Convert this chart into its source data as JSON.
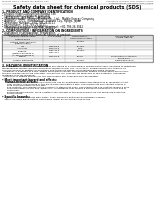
{
  "bg_color": "#ffffff",
  "header_top_left": "Product Name: Lithium Ion Battery Cell",
  "header_top_right": "Substance Number: M37702M2A-278FP\nEstablishment / Revision: Dec.7.2010",
  "title": "Safety data sheet for chemical products (SDS)",
  "section1_title": "1. PRODUCT AND COMPANY IDENTIFICATION",
  "section1_lines": [
    "• Product name: Lithium Ion Battery Cell",
    "• Product code: Cylindrical type cell",
    "   (AF18650U, (AF18650L, (AF18650A",
    "• Company name:   Banyu Electric Co., Ltd.,  Middle Energy Company",
    "• Address:   2201,  Kamimatsuri, Sumoto City, Hyogo, Japan",
    "• Telephone number:  +81-799-26-4111",
    "• Fax number:  +81-799-26-4121",
    "• Emergency telephone number (daytime): +81-799-26-3042",
    "   (Night and holiday): +81-799-26-4121"
  ],
  "section2_title": "2. COMPOSITION / INFORMATION ON INGREDIENTS",
  "section2_sub": "• Substance or preparation: Preparation",
  "section2_sub2": "• Information about the chemical nature of product:",
  "table_headers": [
    "Common/chemical name\n\nGeneral name",
    "CAS number",
    "Concentration /\nConcentration range",
    "Classification and\nhazard labeling"
  ],
  "table_rows": [
    [
      "Lithium cobalt tantalate\n(LiMn₂Co₂PbO₄)",
      "-",
      "30-60%",
      "-"
    ],
    [
      "Iron",
      "7439-89-6",
      "15-30%",
      "-"
    ],
    [
      "Aluminum",
      "7429-90-5",
      "2-6%",
      "-"
    ],
    [
      "Graphite\n(Metal in graphite-1)\n(Al-Mo in graphite-1)",
      "7782-42-5\n7782-44-7",
      "10-20%",
      "-"
    ],
    [
      "Copper",
      "7440-50-8",
      "5-15%",
      "Sensitization of the skin\ngroup No.2"
    ],
    [
      "Organic electrolyte",
      "-",
      "10-20%",
      "Flammable liquid"
    ]
  ],
  "section3_title": "3. HAZARDS IDENTIFICATION",
  "section3_lines": [
    "For the battery cell, chemical substances are stored in a hermetically sealed metal case, designed to withstand",
    "temperatures during complex-operations during normal use. As a result, during normal use, there is no",
    "physical danger of ignition or explosion and therefore danger of hazardous materials leakage.",
    "  However, if exposed to a fire, added mechanical shocks, decomposed, written electric wires are misuse,",
    "the gas release cannot be operated. The battery cell case will be breached of fire-potential, hazardous",
    "materials may be released.",
    "  Moreover, if heated strongly by the surrounding fire, toxic gas may be emitted."
  ],
  "section3_sub1": "• Most important hazard and effects:",
  "section3_human": "  Human health effects:",
  "section3_human_lines": [
    "    Inhalation: The release of the electrolyte has an anesthesia action and stimulates in respiratory tract.",
    "    Skin contact: The release of the electrolyte stimulates a skin. The electrolyte skin contact causes a",
    "    sore and stimulation on the skin.",
    "    Eye contact: The release of the electrolyte stimulates eyes. The electrolyte eye contact causes a sore",
    "    and stimulation on the eye. Especially, a substance that causes a strong inflammation of the eye is",
    "    contained.",
    "    Environmental effects: Since a battery cell remains in the environment, do not throw out it into the",
    "    environment."
  ],
  "section3_specific": "• Specific hazards:",
  "section3_specific_lines": [
    "  If the electrolyte contacts with water, it will generate detrimental hydrogen fluoride.",
    "  Since the used electrolyte is flammable liquid, do not bring close to fire."
  ]
}
